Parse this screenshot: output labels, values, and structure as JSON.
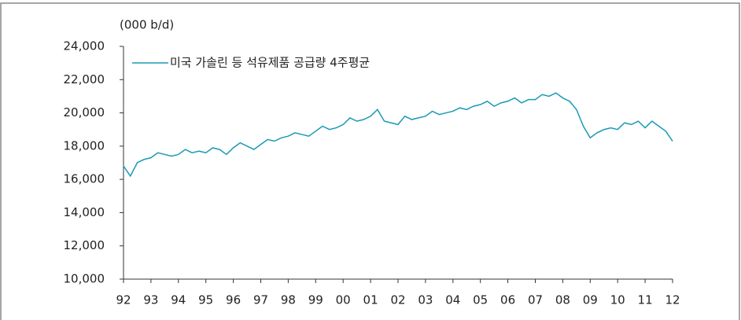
{
  "chart_data": {
    "type": "line",
    "unit_label": "(000 b/d)",
    "series": [
      {
        "name": "미국 가솔린 등 석유제품 공급량 4주평균",
        "color": "#1a9ab5",
        "values": [
          16800,
          16200,
          17000,
          17200,
          17300,
          17600,
          17500,
          17400,
          17500,
          17800,
          17600,
          17700,
          17600,
          17900,
          17800,
          17500,
          17900,
          18200,
          18000,
          17800,
          18100,
          18400,
          18300,
          18500,
          18600,
          18800,
          18700,
          18600,
          18900,
          19200,
          19000,
          19100,
          19300,
          19700,
          19500,
          19600,
          19800,
          20200,
          19500,
          19400,
          19300,
          19800,
          19600,
          19700,
          19800,
          20100,
          19900,
          20000,
          20100,
          20300,
          20200,
          20400,
          20500,
          20700,
          20400,
          20600,
          20700,
          20900,
          20600,
          20800,
          20800,
          21100,
          21000,
          21200,
          20900,
          20700,
          20200,
          19200,
          18500,
          18800,
          19000,
          19100,
          19000,
          19400,
          19300,
          19500,
          19100,
          19500,
          19200,
          18900,
          18300
        ]
      }
    ],
    "x": [
      1992,
      1992.25,
      1992.5,
      1992.75,
      1993,
      1993.25,
      1993.5,
      1993.75,
      1994,
      1994.25,
      1994.5,
      1994.75,
      1995,
      1995.25,
      1995.5,
      1995.75,
      1996,
      1996.25,
      1996.5,
      1996.75,
      1997,
      1997.25,
      1997.5,
      1997.75,
      1998,
      1998.25,
      1998.5,
      1998.75,
      1999,
      1999.25,
      1999.5,
      1999.75,
      2000,
      2000.25,
      2000.5,
      2000.75,
      2001,
      2001.25,
      2001.5,
      2001.75,
      2002,
      2002.25,
      2002.5,
      2002.75,
      2003,
      2003.25,
      2003.5,
      2003.75,
      2004,
      2004.25,
      2004.5,
      2004.75,
      2005,
      2005.25,
      2005.5,
      2005.75,
      2006,
      2006.25,
      2006.5,
      2006.75,
      2007,
      2007.25,
      2007.5,
      2007.75,
      2008,
      2008.25,
      2008.5,
      2008.75,
      2009,
      2009.25,
      2009.5,
      2009.75,
      2010,
      2010.25,
      2010.5,
      2010.75,
      2011,
      2011.25,
      2011.5,
      2011.75,
      2012
    ],
    "xlim": [
      1992,
      2012
    ],
    "xticks": [
      {
        "value": 1992,
        "label": "92"
      },
      {
        "value": 1993,
        "label": "93"
      },
      {
        "value": 1994,
        "label": "94"
      },
      {
        "value": 1995,
        "label": "95"
      },
      {
        "value": 1996,
        "label": "96"
      },
      {
        "value": 1997,
        "label": "97"
      },
      {
        "value": 1998,
        "label": "98"
      },
      {
        "value": 1999,
        "label": "99"
      },
      {
        "value": 2000,
        "label": "00"
      },
      {
        "value": 2001,
        "label": "01"
      },
      {
        "value": 2002,
        "label": "02"
      },
      {
        "value": 2003,
        "label": "03"
      },
      {
        "value": 2004,
        "label": "04"
      },
      {
        "value": 2005,
        "label": "05"
      },
      {
        "value": 2006,
        "label": "06"
      },
      {
        "value": 2007,
        "label": "07"
      },
      {
        "value": 2008,
        "label": "08"
      },
      {
        "value": 2009,
        "label": "09"
      },
      {
        "value": 2010,
        "label": "10"
      },
      {
        "value": 2011,
        "label": "11"
      },
      {
        "value": 2012,
        "label": "12"
      }
    ],
    "ylim": [
      10000,
      24000
    ],
    "yticks": [
      {
        "value": 10000,
        "label": "10,000"
      },
      {
        "value": 12000,
        "label": "12,000"
      },
      {
        "value": 14000,
        "label": "14,000"
      },
      {
        "value": 16000,
        "label": "16,000"
      },
      {
        "value": 18000,
        "label": "18,000"
      },
      {
        "value": 20000,
        "label": "20,000"
      },
      {
        "value": 22000,
        "label": "22,000"
      },
      {
        "value": 24000,
        "label": "24,000"
      }
    ],
    "legend": "top-left",
    "grid": false
  }
}
